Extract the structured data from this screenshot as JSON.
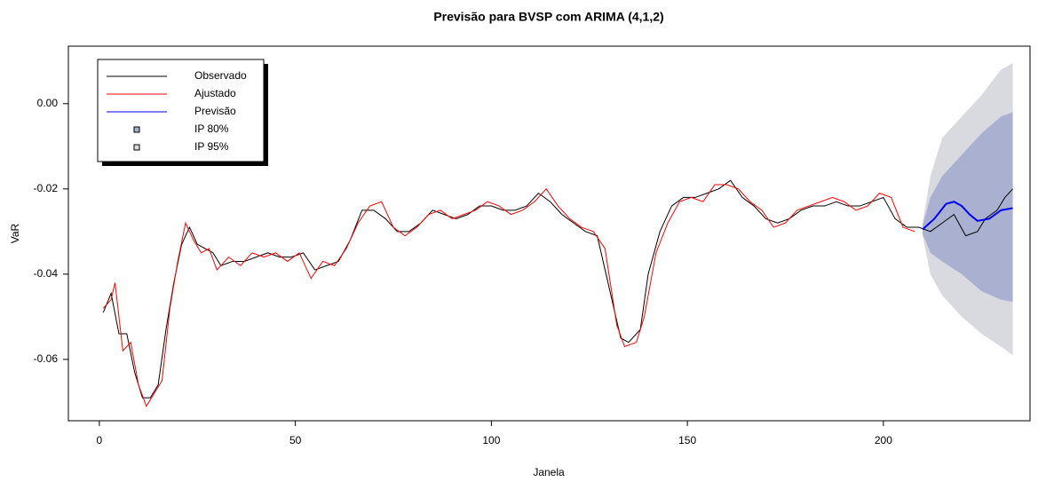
{
  "chart_data": {
    "type": "line",
    "title": "Previsão para BVSP com ARIMA (4,1,2)",
    "x_label": "Janela",
    "y_label": "VaR",
    "xlim": [
      -7.9,
      237.4
    ],
    "ylim": [
      -0.0744,
      0.0135
    ],
    "xticks": [
      0,
      50,
      100,
      150,
      200
    ],
    "yticks": [
      -0.06,
      -0.04,
      -0.02,
      {
        "value": 0,
        "label": "0.00"
      }
    ],
    "legend": "top-left",
    "series": [
      {
        "name": "IP 95%",
        "kind": "band",
        "color": "#d9d9e0",
        "x": [
          210,
          212,
          215,
          220,
          225,
          230,
          233
        ],
        "lower": [
          -0.031,
          -0.04,
          -0.045,
          -0.05,
          -0.054,
          -0.057,
          -0.059
        ],
        "upper": [
          -0.028,
          -0.017,
          -0.008,
          -0.003,
          0.002,
          0.008,
          0.0095
        ]
      },
      {
        "name": "IP 80%",
        "kind": "band",
        "color": "#aab0cf",
        "x": [
          210,
          212,
          215,
          220,
          225,
          230,
          233
        ],
        "lower": [
          -0.0305,
          -0.035,
          -0.037,
          -0.04,
          -0.044,
          -0.046,
          -0.0465
        ],
        "upper": [
          -0.0285,
          -0.022,
          -0.017,
          -0.012,
          -0.007,
          -0.003,
          -0.002
        ]
      },
      {
        "name": "Observado",
        "kind": "line",
        "color": "#000000",
        "x": [
          1,
          3,
          5,
          7,
          9,
          11,
          13,
          15,
          17,
          19,
          21,
          23,
          25,
          27,
          29,
          31,
          34,
          37,
          40,
          43,
          46,
          49,
          52,
          55,
          58,
          61,
          64,
          67,
          70,
          73,
          76,
          79,
          82,
          85,
          88,
          91,
          94,
          97,
          100,
          103,
          106,
          109,
          112,
          115,
          118,
          121,
          124,
          127,
          130,
          133,
          135,
          138,
          140,
          143,
          146,
          149,
          152,
          155,
          158,
          161,
          164,
          167,
          170,
          173,
          176,
          179,
          182,
          185,
          188,
          191,
          194,
          197,
          200,
          203,
          206,
          209,
          212,
          215,
          218,
          221,
          224,
          226,
          229,
          231,
          233
        ],
        "values": [
          -0.049,
          -0.0445,
          -0.054,
          -0.054,
          -0.063,
          -0.069,
          -0.069,
          -0.066,
          -0.053,
          -0.042,
          -0.033,
          -0.029,
          -0.033,
          -0.034,
          -0.035,
          -0.038,
          -0.037,
          -0.037,
          -0.036,
          -0.035,
          -0.036,
          -0.036,
          -0.035,
          -0.039,
          -0.038,
          -0.037,
          -0.032,
          -0.025,
          -0.025,
          -0.027,
          -0.03,
          -0.03,
          -0.028,
          -0.025,
          -0.026,
          -0.027,
          -0.026,
          -0.024,
          -0.024,
          -0.025,
          -0.025,
          -0.024,
          -0.021,
          -0.023,
          -0.026,
          -0.028,
          -0.03,
          -0.031,
          -0.043,
          -0.055,
          -0.056,
          -0.053,
          -0.04,
          -0.03,
          -0.024,
          -0.022,
          -0.022,
          -0.021,
          -0.02,
          -0.018,
          -0.022,
          -0.024,
          -0.027,
          -0.028,
          -0.027,
          -0.025,
          -0.024,
          -0.024,
          -0.023,
          -0.024,
          -0.024,
          -0.023,
          -0.022,
          -0.027,
          -0.029,
          -0.029,
          -0.03,
          -0.028,
          -0.026,
          -0.031,
          -0.03,
          -0.027,
          -0.025,
          -0.022,
          -0.02
        ]
      },
      {
        "name": "Ajustado",
        "kind": "line",
        "color": "#ff0000",
        "x": [
          1,
          3,
          4,
          6,
          8,
          10,
          12,
          14,
          16,
          18,
          20,
          22,
          24,
          26,
          28,
          30,
          33,
          36,
          39,
          42,
          45,
          48,
          51,
          54,
          57,
          60,
          63,
          66,
          69,
          72,
          75,
          78,
          81,
          84,
          87,
          90,
          93,
          96,
          99,
          102,
          105,
          108,
          111,
          114,
          117,
          120,
          123,
          126,
          129,
          132,
          134,
          137,
          139,
          142,
          145,
          148,
          151,
          154,
          157,
          160,
          163,
          166,
          169,
          172,
          175,
          178,
          181,
          184,
          187,
          190,
          193,
          196,
          199,
          202,
          205,
          208
        ],
        "values": [
          -0.048,
          -0.046,
          -0.042,
          -0.058,
          -0.056,
          -0.066,
          -0.071,
          -0.068,
          -0.065,
          -0.048,
          -0.037,
          -0.028,
          -0.032,
          -0.035,
          -0.034,
          -0.039,
          -0.036,
          -0.038,
          -0.035,
          -0.036,
          -0.035,
          -0.037,
          -0.035,
          -0.041,
          -0.037,
          -0.038,
          -0.034,
          -0.028,
          -0.024,
          -0.023,
          -0.029,
          -0.031,
          -0.029,
          -0.026,
          -0.025,
          -0.027,
          -0.026,
          -0.025,
          -0.023,
          -0.024,
          -0.026,
          -0.025,
          -0.023,
          -0.02,
          -0.024,
          -0.027,
          -0.029,
          -0.03,
          -0.034,
          -0.052,
          -0.057,
          -0.056,
          -0.05,
          -0.035,
          -0.028,
          -0.023,
          -0.022,
          -0.023,
          -0.019,
          -0.019,
          -0.02,
          -0.023,
          -0.025,
          -0.029,
          -0.028,
          -0.025,
          -0.024,
          -0.023,
          -0.022,
          -0.023,
          -0.025,
          -0.024,
          -0.021,
          -0.022,
          -0.029,
          -0.03
        ]
      },
      {
        "name": "Previsão",
        "kind": "line",
        "color": "#0000ee",
        "width": 2,
        "x": [
          210,
          213,
          216,
          218,
          220,
          222,
          224,
          227,
          230,
          233
        ],
        "values": [
          -0.0295,
          -0.027,
          -0.0235,
          -0.023,
          -0.024,
          -0.026,
          -0.0275,
          -0.027,
          -0.025,
          -0.0245
        ]
      }
    ]
  }
}
